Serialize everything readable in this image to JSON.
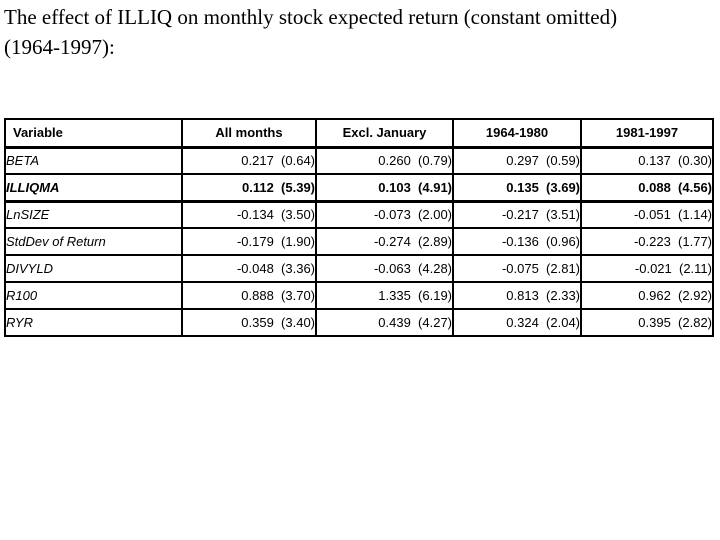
{
  "title": {
    "line1": "The effect of ILLIQ on monthly stock expected return (constant omitted)",
    "line2": "(1964-1997):"
  },
  "table": {
    "columns": [
      "Variable",
      "All months",
      "Excl. January",
      "1964-1980",
      "1981-1997"
    ],
    "rows": [
      {
        "variable": "BETA",
        "bold": false,
        "values": [
          "0.217  (0.64)",
          "0.260  (0.79)",
          "0.297  (0.59)",
          "0.137  (0.30)"
        ]
      },
      {
        "variable": "ILLIQMA",
        "bold": true,
        "values": [
          "0.112  (5.39)",
          "0.103  (4.91)",
          "0.135  (3.69)",
          "0.088  (4.56)"
        ]
      },
      {
        "variable": "LnSIZE",
        "bold": false,
        "values": [
          "-0.134  (3.50)",
          "-0.073  (2.00)",
          "-0.217  (3.51)",
          "-0.051  (1.14)"
        ]
      },
      {
        "variable": "StdDev of Return",
        "bold": false,
        "values": [
          "-0.179  (1.90)",
          "-0.274  (2.89)",
          "-0.136  (0.96)",
          "-0.223  (1.77)"
        ]
      },
      {
        "variable": "DIVYLD",
        "bold": false,
        "values": [
          "-0.048  (3.36)",
          "-0.063  (4.28)",
          "-0.075  (2.81)",
          "-0.021  (2.11)"
        ]
      },
      {
        "variable": "R100",
        "bold": false,
        "values": [
          "0.888  (3.70)",
          "1.335  (6.19)",
          "0.813  (2.33)",
          "0.962  (2.92)"
        ]
      },
      {
        "variable": "RYR",
        "bold": false,
        "values": [
          "0.359  (3.40)",
          "0.439  (4.27)",
          "0.324  (2.04)",
          "0.395  (2.82)"
        ]
      }
    ]
  },
  "colors": {
    "background": "#ffffff",
    "text": "#000000",
    "table_border": "#000000"
  }
}
